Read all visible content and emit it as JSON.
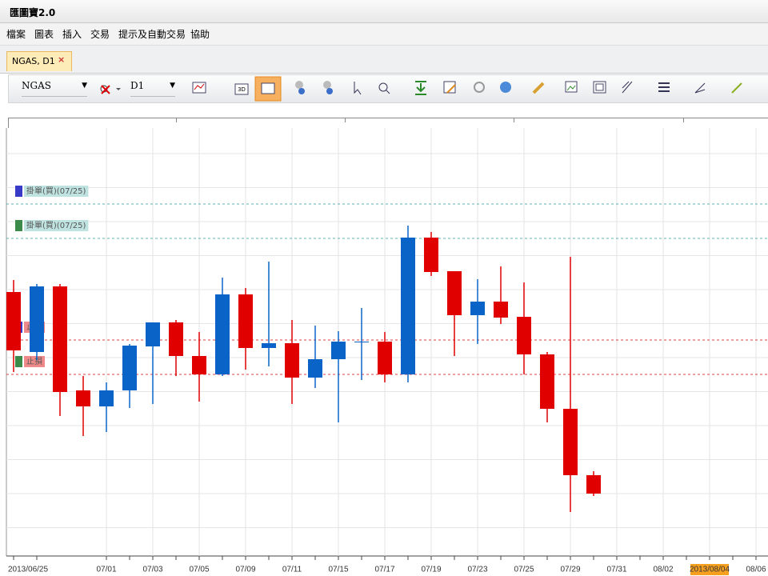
{
  "window": {
    "title": "匯圖寶2.0"
  },
  "menu": [
    "檔案",
    "圖表",
    "插入",
    "交易",
    "提示及自動交易",
    "協助"
  ],
  "tab": {
    "label": "NGAS, D1",
    "close": "×"
  },
  "toolbar": {
    "symbol": "NGAS",
    "timeframe": "D1"
  },
  "chart_data": {
    "type": "candlestick",
    "up_color": "#0a64c8",
    "down_color": "#e00000",
    "ylim": [
      0,
      530
    ],
    "open": [
      325,
      250,
      332,
      202,
      182,
      202,
      257,
      287,
      245,
      222,
      322,
      255,
      261,
      218,
      241,
      262,
      263,
      222,
      393,
      351,
      296,
      313,
      294,
      247,
      179,
      96
    ],
    "high": [
      340,
      335,
      335,
      220,
      212,
      260,
      287,
      290,
      275,
      343,
      330,
      363,
      290,
      283,
      276,
      305,
      275,
      408,
      400,
      351,
      341,
      357,
      337,
      250,
      369,
      101
    ],
    "low": [
      225,
      240,
      170,
      145,
      150,
      180,
      185,
      220,
      188,
      220,
      228,
      232,
      185,
      205,
      162,
      215,
      212,
      212,
      345,
      245,
      260,
      285,
      222,
      162,
      50,
      70
    ],
    "close": [
      252,
      332,
      200,
      182,
      202,
      258,
      287,
      245,
      222,
      322,
      255,
      261,
      218,
      241,
      263,
      263,
      222,
      393,
      350,
      296,
      313,
      293,
      247,
      179,
      96,
      73
    ],
    "x_labels": [
      "2013/06/25",
      "07/01",
      "07/03",
      "07/05",
      "07/09",
      "07/11",
      "07/15",
      "07/17",
      "07/19",
      "07/23",
      "07/25",
      "07/29",
      "07/31",
      "08/02",
      "2013/08/04",
      "08/06"
    ],
    "highlight_index": 14,
    "levels": [
      {
        "label": "掛單(買)(07/25)",
        "value": 435,
        "line_color": "#5fb0b0",
        "label_bg": "#bfe3e0",
        "marker": "#3a3ac8"
      },
      {
        "label": "掛單(買)(07/25)",
        "value": 392,
        "line_color": "#5fb0b0",
        "label_bg": "#bfe3e0",
        "marker": "#3a8a4a"
      },
      {
        "label": "止損",
        "value": 265,
        "line_color": "#e04040",
        "label_bg": "#f08a8a",
        "marker": "#3a3ac8"
      },
      {
        "label": "止損",
        "value": 222,
        "line_color": "#e04040",
        "label_bg": "#f08a8a",
        "marker": "#3a8a4a"
      }
    ]
  }
}
